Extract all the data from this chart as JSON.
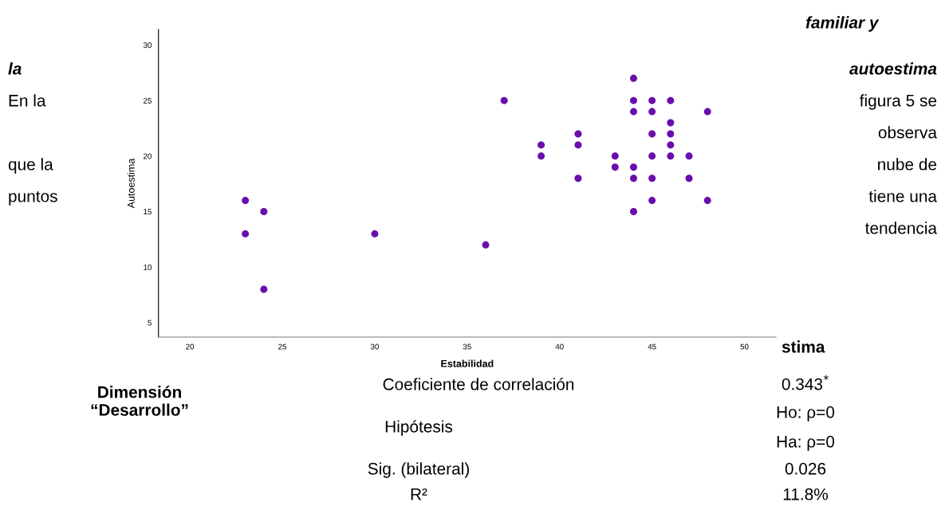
{
  "chart_data": {
    "type": "scatter",
    "xlabel": "Estabilidad",
    "ylabel": "Autoestima",
    "x": [
      23,
      23,
      24,
      24,
      30,
      36,
      37,
      39,
      39,
      41,
      41,
      41,
      43,
      43,
      44,
      44,
      44,
      44,
      44,
      44,
      45,
      45,
      45,
      45,
      45,
      45,
      46,
      46,
      46,
      46,
      46,
      47,
      47,
      48,
      48
    ],
    "values": [
      16,
      13,
      15,
      8,
      13,
      12,
      25,
      21,
      20,
      22,
      21,
      18,
      20,
      19,
      27,
      25,
      24,
      19,
      18,
      15,
      25,
      24,
      22,
      20,
      18,
      16,
      25,
      23,
      22,
      21,
      20,
      20,
      18,
      24,
      16
    ],
    "color": "#6a0dad",
    "marker": "circle",
    "grid": false,
    "xlim": [
      18.3,
      51.7
    ],
    "xticks": [
      20,
      25,
      30,
      35,
      40,
      45,
      50
    ],
    "ylim": [
      3.7,
      31.4
    ],
    "yticks": [
      5,
      10,
      15,
      20,
      25,
      30
    ],
    "annotations": [
      "familiar y",
      "la",
      "autoestima",
      "En la",
      "figura 5 se",
      "observa",
      "que la",
      "nube de",
      "puntos",
      "tiene una",
      "tendencia",
      "stima",
      "Dimensión\n“Desarrollo”",
      "Coeficiente de correlación",
      "0.343$^{*}$",
      "Hipótesis",
      "Ho: ρ=0",
      "Ha: ρ=0",
      "Sig. (bilateral)",
      "0.026",
      "R²",
      "11.8%"
    ]
  }
}
